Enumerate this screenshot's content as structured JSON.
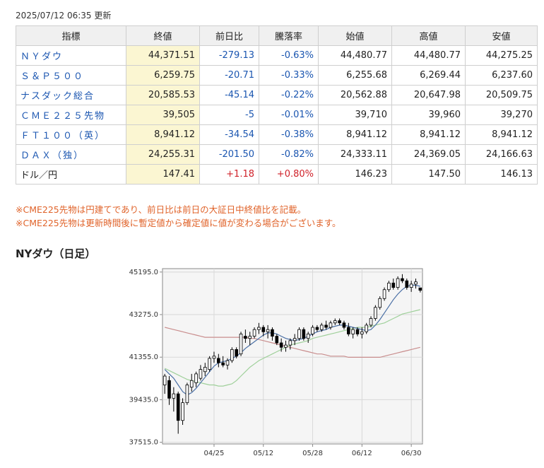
{
  "updated": "2025/07/12 06:35 更新",
  "table": {
    "headers": [
      "指標",
      "終値",
      "前日比",
      "騰落率",
      "始値",
      "高値",
      "安値"
    ],
    "rows": [
      {
        "name": "ＮＹダウ",
        "link": true,
        "close": "44,371.51",
        "change": "-279.13",
        "pct": "-0.63%",
        "open": "44,480.77",
        "high": "44,480.77",
        "low": "44,275.25",
        "dir": "neg"
      },
      {
        "name": "Ｓ＆Ｐ５００",
        "link": true,
        "close": "6,259.75",
        "change": "-20.71",
        "pct": "-0.33%",
        "open": "6,255.68",
        "high": "6,269.44",
        "low": "6,237.60",
        "dir": "neg"
      },
      {
        "name": "ナスダック総合",
        "link": true,
        "close": "20,585.53",
        "change": "-45.14",
        "pct": "-0.22%",
        "open": "20,562.88",
        "high": "20,647.98",
        "low": "20,509.75",
        "dir": "neg"
      },
      {
        "name": "ＣＭＥ２２５先物",
        "link": true,
        "close": "39,505",
        "change": "-5",
        "pct": "-0.01%",
        "open": "39,710",
        "high": "39,960",
        "low": "39,270",
        "dir": "neg"
      },
      {
        "name": "ＦＴ１００（英）",
        "link": true,
        "close": "8,941.12",
        "change": "-34.54",
        "pct": "-0.38%",
        "open": "8,941.12",
        "high": "8,941.12",
        "low": "8,941.12",
        "dir": "neg"
      },
      {
        "name": "ＤＡＸ（独）",
        "link": true,
        "close": "24,255.31",
        "change": "-201.50",
        "pct": "-0.82%",
        "open": "24,333.11",
        "high": "24,369.05",
        "low": "24,166.63",
        "dir": "neg"
      },
      {
        "name": "ドル／円",
        "link": false,
        "close": "147.41",
        "change": "+1.18",
        "pct": "+0.80%",
        "open": "146.23",
        "high": "147.50",
        "low": "146.13",
        "dir": "pos"
      }
    ]
  },
  "notes": [
    "※CME225先物は円建てであり、前日比は前日の大証日中終値比を記載。",
    "※CME225先物は更新時間後に暫定値から確定値に値が変わる場合がございます。"
  ],
  "chart_title": "NYダウ（日足）",
  "colors": {
    "link": "#1a55b0",
    "negative": "#1a55b0",
    "positive": "#d0222a",
    "note": "#e0632a",
    "ma_short": "#4a6fa5",
    "ma_mid": "#9fd09a",
    "ma_long": "#c98d8d"
  },
  "chart_data": {
    "type": "candlestick",
    "title": "NYダウ（日足）",
    "y_ticks": [
      37515.0,
      39435.0,
      41355.0,
      43275.0,
      45195.0
    ],
    "y_tick_labels": [
      "37515.0",
      "39435.0",
      "41355.0",
      "43275.0",
      "45195.0"
    ],
    "ylim": [
      37515.0,
      45195.0
    ],
    "x_ticks": [
      {
        "index": 11,
        "label": "04/25"
      },
      {
        "index": 22,
        "label": "05/12"
      },
      {
        "index": 33,
        "label": "05/28"
      },
      {
        "index": 44,
        "label": "06/12"
      },
      {
        "index": 55,
        "label": "06/30"
      }
    ],
    "grid": true,
    "candles": [
      {
        "o": 40100,
        "h": 40600,
        "l": 39700,
        "c": 40500
      },
      {
        "o": 40300,
        "h": 40500,
        "l": 39200,
        "c": 39500
      },
      {
        "o": 39500,
        "h": 40000,
        "l": 38900,
        "c": 39700
      },
      {
        "o": 39700,
        "h": 39800,
        "l": 37900,
        "c": 38500
      },
      {
        "o": 38500,
        "h": 39500,
        "l": 38300,
        "c": 39300
      },
      {
        "o": 39300,
        "h": 40200,
        "l": 39200,
        "c": 40100
      },
      {
        "o": 40000,
        "h": 40600,
        "l": 39800,
        "c": 40300
      },
      {
        "o": 40200,
        "h": 40700,
        "l": 40000,
        "c": 40600
      },
      {
        "o": 40400,
        "h": 41000,
        "l": 40300,
        "c": 40800
      },
      {
        "o": 40700,
        "h": 41100,
        "l": 40500,
        "c": 40900
      },
      {
        "o": 40800,
        "h": 41400,
        "l": 40700,
        "c": 41300
      },
      {
        "o": 41300,
        "h": 41600,
        "l": 41100,
        "c": 41400
      },
      {
        "o": 41300,
        "h": 41500,
        "l": 40900,
        "c": 41100
      },
      {
        "o": 41100,
        "h": 41400,
        "l": 40900,
        "c": 41000
      },
      {
        "o": 41000,
        "h": 41300,
        "l": 40800,
        "c": 41200
      },
      {
        "o": 41200,
        "h": 41800,
        "l": 41100,
        "c": 41700
      },
      {
        "o": 41700,
        "h": 41800,
        "l": 41300,
        "c": 41400
      },
      {
        "o": 41500,
        "h": 42500,
        "l": 41400,
        "c": 42400
      },
      {
        "o": 42300,
        "h": 42600,
        "l": 42000,
        "c": 42200
      },
      {
        "o": 42200,
        "h": 42500,
        "l": 41900,
        "c": 42300
      },
      {
        "o": 42300,
        "h": 42700,
        "l": 42200,
        "c": 42600
      },
      {
        "o": 42600,
        "h": 42900,
        "l": 42400,
        "c": 42700
      },
      {
        "o": 42700,
        "h": 42800,
        "l": 42300,
        "c": 42500
      },
      {
        "o": 42500,
        "h": 42800,
        "l": 42200,
        "c": 42600
      },
      {
        "o": 42600,
        "h": 42700,
        "l": 42100,
        "c": 42300
      },
      {
        "o": 42300,
        "h": 42400,
        "l": 41900,
        "c": 42000
      },
      {
        "o": 42000,
        "h": 42200,
        "l": 41600,
        "c": 41800
      },
      {
        "o": 41800,
        "h": 42100,
        "l": 41600,
        "c": 41900
      },
      {
        "o": 41900,
        "h": 42200,
        "l": 41700,
        "c": 42100
      },
      {
        "o": 42100,
        "h": 42400,
        "l": 41900,
        "c": 42200
      },
      {
        "o": 42200,
        "h": 42700,
        "l": 42100,
        "c": 42600
      },
      {
        "o": 42600,
        "h": 42700,
        "l": 42100,
        "c": 42200
      },
      {
        "o": 42200,
        "h": 42500,
        "l": 42000,
        "c": 42400
      },
      {
        "o": 42400,
        "h": 42800,
        "l": 42300,
        "c": 42700
      },
      {
        "o": 42700,
        "h": 42800,
        "l": 42500,
        "c": 42600
      },
      {
        "o": 42600,
        "h": 42900,
        "l": 42500,
        "c": 42800
      },
      {
        "o": 42800,
        "h": 43000,
        "l": 42600,
        "c": 42700
      },
      {
        "o": 42700,
        "h": 43000,
        "l": 42600,
        "c": 42900
      },
      {
        "o": 42900,
        "h": 43100,
        "l": 42800,
        "c": 43000
      },
      {
        "o": 43000,
        "h": 43100,
        "l": 42800,
        "c": 42900
      },
      {
        "o": 42900,
        "h": 43000,
        "l": 42600,
        "c": 42700
      },
      {
        "o": 42700,
        "h": 42900,
        "l": 42300,
        "c": 42400
      },
      {
        "o": 42400,
        "h": 42700,
        "l": 42200,
        "c": 42600
      },
      {
        "o": 42600,
        "h": 42700,
        "l": 42300,
        "c": 42400
      },
      {
        "o": 42400,
        "h": 42700,
        "l": 42200,
        "c": 42500
      },
      {
        "o": 42500,
        "h": 42900,
        "l": 42400,
        "c": 42800
      },
      {
        "o": 42800,
        "h": 43200,
        "l": 42700,
        "c": 43100
      },
      {
        "o": 43100,
        "h": 43700,
        "l": 43000,
        "c": 43600
      },
      {
        "o": 43600,
        "h": 44100,
        "l": 43500,
        "c": 44000
      },
      {
        "o": 44000,
        "h": 44500,
        "l": 43900,
        "c": 44400
      },
      {
        "o": 44400,
        "h": 44800,
        "l": 44300,
        "c": 44700
      },
      {
        "o": 44700,
        "h": 44900,
        "l": 44400,
        "c": 44500
      },
      {
        "o": 44500,
        "h": 45000,
        "l": 44400,
        "c": 44900
      },
      {
        "o": 44900,
        "h": 45100,
        "l": 44700,
        "c": 44800
      },
      {
        "o": 44800,
        "h": 44900,
        "l": 44400,
        "c": 44500
      },
      {
        "o": 44500,
        "h": 44800,
        "l": 44300,
        "c": 44650
      },
      {
        "o": 44650,
        "h": 44900,
        "l": 44450,
        "c": 44750
      },
      {
        "o": 44480.77,
        "h": 44480.77,
        "l": 44275.25,
        "c": 44371.51
      }
    ],
    "ma_short": [
      40800,
      40600,
      40400,
      40100,
      39800,
      39650,
      39750,
      39950,
      40200,
      40450,
      40700,
      40950,
      41100,
      41150,
      41200,
      41300,
      41400,
      41550,
      41750,
      41900,
      42050,
      42200,
      42350,
      42450,
      42450,
      42400,
      42300,
      42200,
      42150,
      42100,
      42150,
      42200,
      42300,
      42400,
      42500,
      42550,
      42600,
      42700,
      42750,
      42800,
      42800,
      42750,
      42700,
      42650,
      42600,
      42550,
      42600,
      42800,
      43050,
      43350,
      43650,
      43950,
      44200,
      44400,
      44550,
      44600,
      44600,
      44550
    ],
    "ma_mid": [
      40850,
      40750,
      40650,
      40550,
      40450,
      40350,
      40300,
      40250,
      40200,
      40150,
      40100,
      40100,
      40050,
      40050,
      40100,
      40150,
      40300,
      40500,
      40700,
      40900,
      41050,
      41200,
      41300,
      41400,
      41500,
      41600,
      41700,
      41800,
      41900,
      41950,
      42000,
      42050,
      42100,
      42200,
      42250,
      42300,
      42350,
      42400,
      42450,
      42500,
      42550,
      42600,
      42650,
      42700,
      42700,
      42700,
      42750,
      42800,
      42850,
      42900,
      43000,
      43100,
      43200,
      43300,
      43350,
      43400,
      43450,
      43500
    ],
    "ma_long": [
      42700,
      42650,
      42600,
      42550,
      42500,
      42450,
      42400,
      42350,
      42300,
      42250,
      42250,
      42250,
      42250,
      42250,
      42250,
      42250,
      42250,
      42250,
      42250,
      42200,
      42200,
      42150,
      42100,
      42050,
      42000,
      41950,
      41900,
      41850,
      41800,
      41750,
      41700,
      41650,
      41600,
      41550,
      41500,
      41500,
      41450,
      41400,
      41400,
      41400,
      41400,
      41350,
      41350,
      41350,
      41350,
      41350,
      41350,
      41350,
      41350,
      41400,
      41450,
      41500,
      41550,
      41600,
      41650,
      41700,
      41750,
      41800
    ]
  }
}
